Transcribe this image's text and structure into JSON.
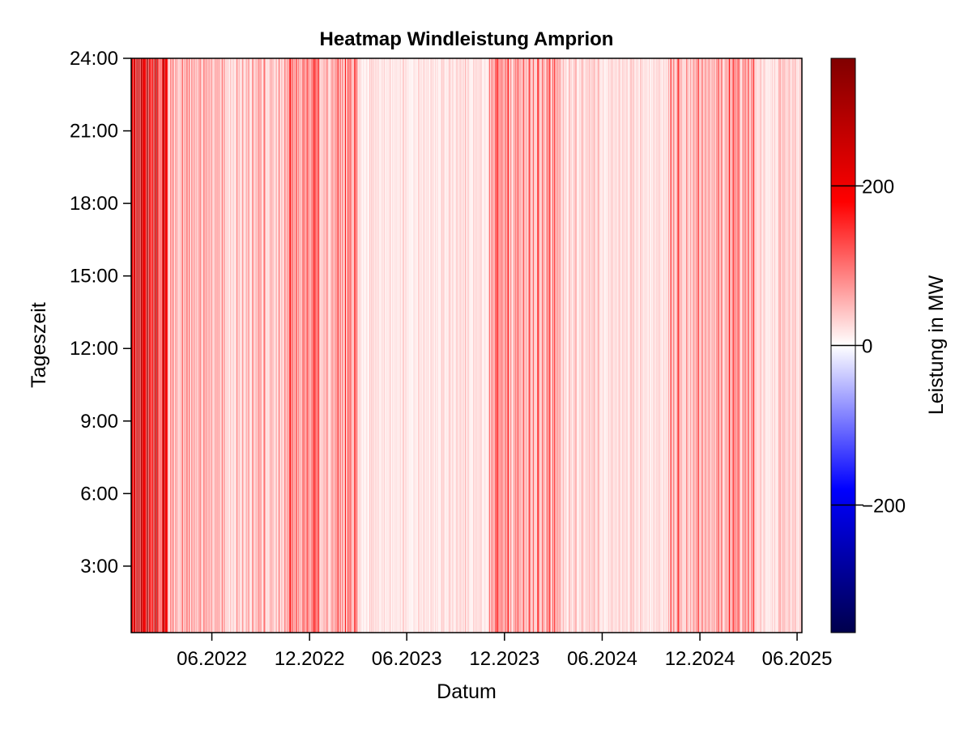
{
  "chart_data": {
    "type": "heatmap",
    "title": "Heatmap Windleistung Amprion",
    "xlabel": "Datum",
    "ylabel": "Tageszeit",
    "x_axis": {
      "range": [
        "2022-01-01",
        "2025-06-10"
      ],
      "ticks": [
        {
          "date": "2022-06-01",
          "label": "06.2022"
        },
        {
          "date": "2022-12-01",
          "label": "12.2022"
        },
        {
          "date": "2023-06-01",
          "label": "06.2023"
        },
        {
          "date": "2023-12-01",
          "label": "12.2023"
        },
        {
          "date": "2024-06-01",
          "label": "06.2024"
        },
        {
          "date": "2024-12-01",
          "label": "12.2024"
        },
        {
          "date": "2025-06-01",
          "label": "06.2025"
        }
      ]
    },
    "y_axis": {
      "range": [
        "0:15",
        "24:00"
      ],
      "ticks": [
        {
          "hour": 3,
          "label": "3:00"
        },
        {
          "hour": 6,
          "label": "6:00"
        },
        {
          "hour": 9,
          "label": "9:00"
        },
        {
          "hour": 12,
          "label": "12:00"
        },
        {
          "hour": 15,
          "label": "15:00"
        },
        {
          "hour": 18,
          "label": "18:00"
        },
        {
          "hour": 21,
          "label": "21:00"
        },
        {
          "hour": 24,
          "label": "24:00"
        }
      ]
    },
    "colorbar": {
      "label": "Leistung in MW",
      "range": [
        -360,
        360
      ],
      "colormap": "seismic",
      "colors": [
        "#00004c",
        "#0000ff",
        "#ffffff",
        "#ff0000",
        "#800000"
      ],
      "ticks": [
        {
          "value": -200,
          "label": "−200"
        },
        {
          "value": 0,
          "label": "0"
        },
        {
          "value": 200,
          "label": "200"
        }
      ]
    },
    "intensity_bands": [
      {
        "from": "2022-01-01",
        "to": "2022-03-10",
        "level_mw": 230
      },
      {
        "from": "2022-03-10",
        "to": "2022-06-01",
        "level_mw": 70
      },
      {
        "from": "2022-06-01",
        "to": "2022-10-15",
        "level_mw": 45
      },
      {
        "from": "2022-10-15",
        "to": "2023-03-01",
        "level_mw": 85
      },
      {
        "from": "2023-03-01",
        "to": "2023-11-01",
        "level_mw": 22
      },
      {
        "from": "2023-11-01",
        "to": "2024-03-15",
        "level_mw": 75
      },
      {
        "from": "2024-03-15",
        "to": "2024-10-01",
        "level_mw": 30
      },
      {
        "from": "2024-10-01",
        "to": "2025-03-15",
        "level_mw": 70
      },
      {
        "from": "2025-03-15",
        "to": "2025-06-10",
        "level_mw": 32
      }
    ]
  }
}
